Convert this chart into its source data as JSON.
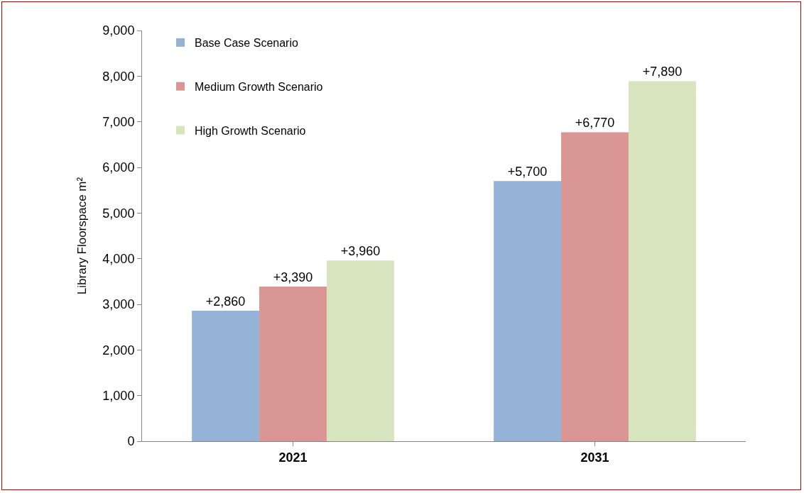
{
  "chart_data": {
    "type": "bar",
    "ylabel": "Library Floorspace m²",
    "categories": [
      "2021",
      "2031"
    ],
    "series": [
      {
        "name": "Base Case Scenario",
        "color": "#95b3d7",
        "values": [
          2860,
          5700
        ],
        "value_labels": [
          "+2,860",
          "+5,700"
        ]
      },
      {
        "name": "Medium Growth Scenario",
        "color": "#d99694",
        "values": [
          3390,
          6770
        ],
        "value_labels": [
          "+3,390",
          "+6,770"
        ]
      },
      {
        "name": "High Growth Scenario",
        "color": "#d7e4bd",
        "values": [
          3960,
          7890
        ],
        "value_labels": [
          "+3,960",
          "+7,890"
        ]
      }
    ],
    "ylim": [
      0,
      9000
    ],
    "yticks": [
      0,
      {
        "value": 1000,
        "label": "1,000"
      },
      {
        "value": 2000,
        "label": "2,000"
      },
      {
        "value": 3000,
        "label": "3,000"
      },
      {
        "value": 4000,
        "label": "4,000"
      },
      {
        "value": 5000,
        "label": "5,000"
      },
      {
        "value": 6000,
        "label": "6,000"
      },
      {
        "value": 7000,
        "label": "7,000"
      },
      {
        "value": 8000,
        "label": "8,000"
      },
      {
        "value": 9000,
        "label": "9,000"
      }
    ],
    "grid": false,
    "legend": "top left"
  }
}
